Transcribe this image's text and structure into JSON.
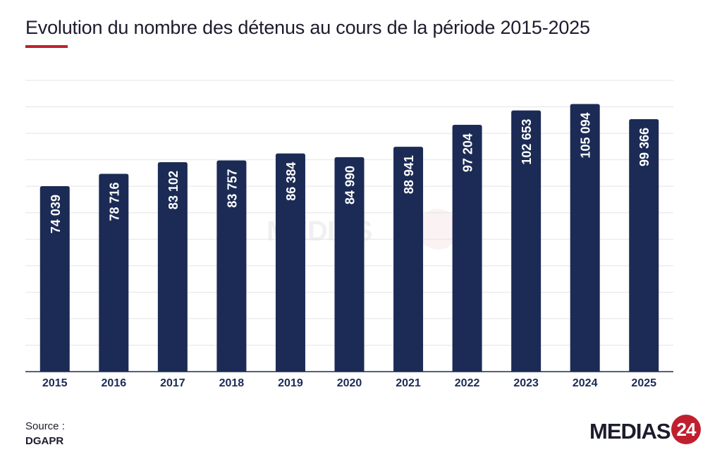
{
  "chart_data": {
    "type": "bar",
    "title": "Evolution du nombre des détenus au cours de la période 2015-2025",
    "categories": [
      "2015",
      "2016",
      "2017",
      "2018",
      "2019",
      "2020",
      "2021",
      "2022",
      "2023",
      "2024",
      "2025"
    ],
    "values": [
      74039,
      78716,
      83102,
      83757,
      86384,
      84990,
      88941,
      97204,
      102653,
      105094,
      99366
    ],
    "data_labels": [
      "74 039",
      "78 716",
      "83 102",
      "83 757",
      "86 384",
      "84 990",
      "88 941",
      "97 204",
      "102 653",
      "105 094",
      "99 366"
    ],
    "ylim": [
      4000,
      114000
    ],
    "grid": true,
    "bar_color": "#1b2b55",
    "accent_color": "#c0202e"
  },
  "source": {
    "label": "Source :",
    "value": "DGAPR"
  },
  "logo": {
    "text": "MEDIAS",
    "badge": "24"
  }
}
